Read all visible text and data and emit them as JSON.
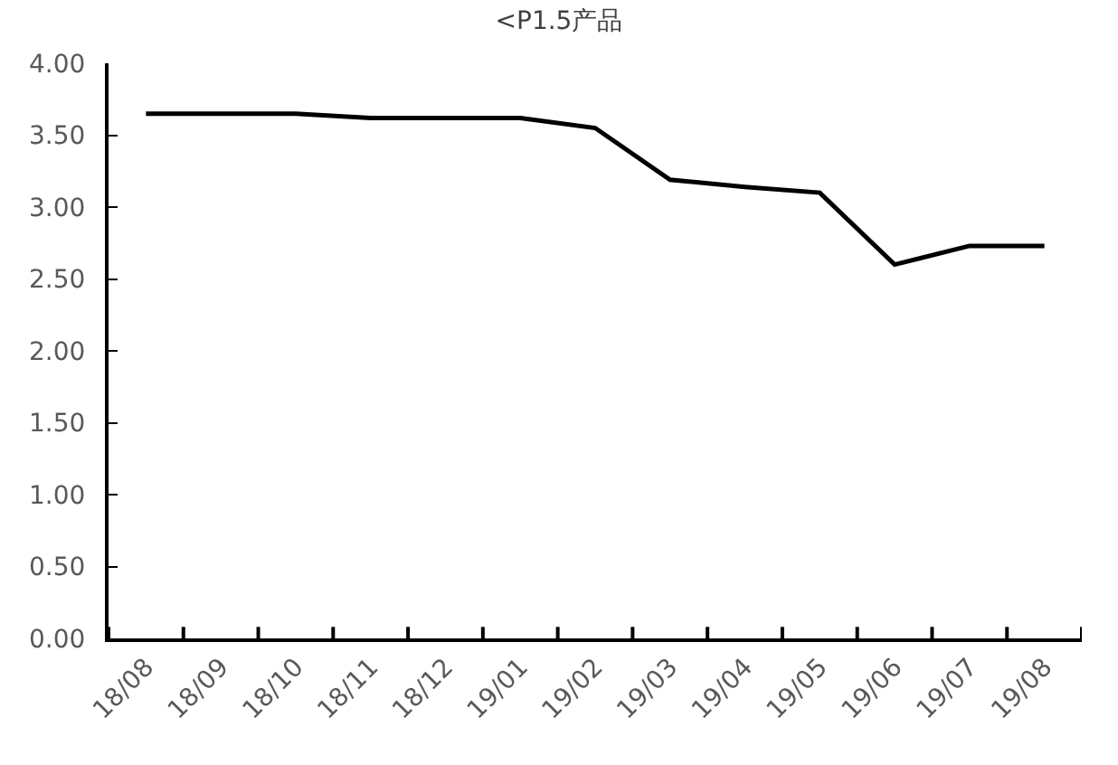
{
  "chart_data": {
    "type": "line",
    "title": "<P1.5产品",
    "categories": [
      "18/08",
      "18/09",
      "18/10",
      "18/11",
      "18/12",
      "19/01",
      "19/02",
      "19/03",
      "19/04",
      "19/05",
      "19/06",
      "19/07",
      "19/08"
    ],
    "series": [
      {
        "color": "#000000",
        "values": [
          3.65,
          3.65,
          3.65,
          3.62,
          3.62,
          3.62,
          3.55,
          3.19,
          3.14,
          3.1,
          2.6,
          2.73,
          2.73
        ]
      }
    ],
    "ylim": [
      0,
      4
    ],
    "yticks": [
      {
        "value": 0,
        "label": "0.00"
      },
      {
        "value": 0.5,
        "label": "0.50"
      },
      {
        "value": 1,
        "label": "1.00"
      },
      {
        "value": 1.5,
        "label": "1.50"
      },
      {
        "value": 2,
        "label": "2.00"
      },
      {
        "value": 2.5,
        "label": "2.50"
      },
      {
        "value": 3,
        "label": "3.00"
      },
      {
        "value": 3.5,
        "label": "3.50"
      },
      {
        "value": 4,
        "label": "4.00"
      }
    ],
    "marker": "none",
    "line_style": "solid"
  }
}
